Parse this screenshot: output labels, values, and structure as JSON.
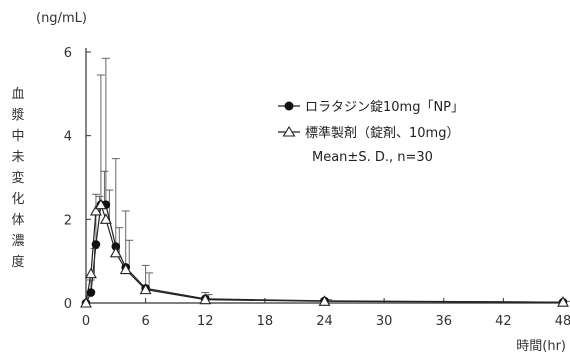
{
  "chart_data": {
    "type": "line",
    "ylabel_unit": "(ng/mL)",
    "ylabel": "血漿中未変化体濃度",
    "xlabel": "時間(hr)",
    "xlim": [
      0,
      48
    ],
    "ylim": [
      0,
      6
    ],
    "xticks": [
      0,
      6,
      12,
      18,
      24,
      30,
      36,
      42,
      48
    ],
    "yticks": [
      0,
      2,
      4,
      6
    ],
    "legend_note": "Mean±S. D., n=30",
    "series": [
      {
        "name": "ロラタジン錠10mg「NP」",
        "marker": "filled-circle",
        "x": [
          0,
          0.5,
          1,
          1.5,
          2,
          3,
          4,
          6,
          12,
          24,
          48
        ],
        "y": [
          0,
          0.25,
          1.4,
          2.35,
          2.35,
          1.35,
          0.85,
          0.35,
          0.1,
          0.05,
          0.02
        ],
        "sd": [
          0,
          0.3,
          1.2,
          3.1,
          3.5,
          2.1,
          1.35,
          0.55,
          0.15,
          0.05,
          0.02
        ]
      },
      {
        "name": "標準製剤（錠剤、10mg）",
        "marker": "open-triangle",
        "x": [
          0,
          0.5,
          1,
          1.5,
          2,
          3,
          4,
          6,
          12,
          24,
          48
        ],
        "y": [
          0,
          0.7,
          2.2,
          2.35,
          2.0,
          1.2,
          0.8,
          0.32,
          0.08,
          0.04,
          0.02
        ],
        "sd": [
          0,
          0.6,
          0.35,
          0.8,
          0.7,
          0.6,
          0.7,
          0.4,
          0.12,
          0.04,
          0.02
        ]
      }
    ]
  }
}
